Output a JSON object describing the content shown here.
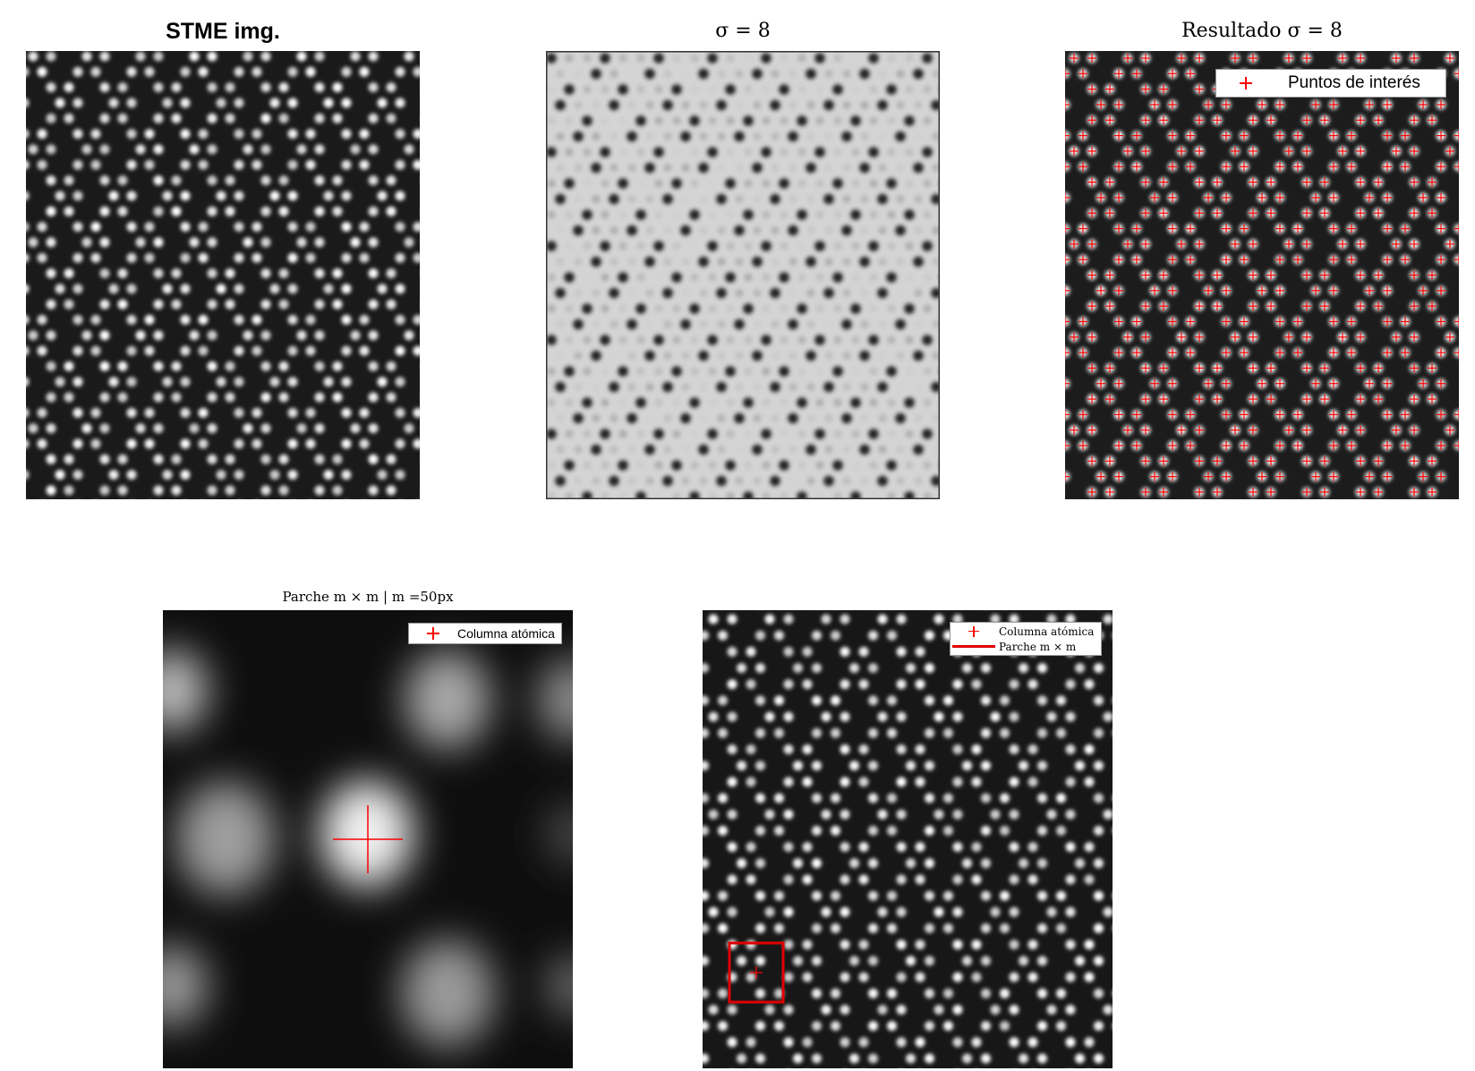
{
  "panels": {
    "stme": {
      "title": "STME img."
    },
    "sigma": {
      "title": "σ = 8"
    },
    "result": {
      "title": "Resultado σ = 8",
      "legend": {
        "marker_label": "Puntos de interés"
      }
    },
    "patch": {
      "title": "Parche m × m | m =50px",
      "legend": {
        "marker_label": "Columna atómica"
      }
    },
    "overview": {
      "legend": {
        "marker_label": "Columna atómica",
        "line_label": "Parche m × m"
      }
    }
  },
  "colors": {
    "marker": "#ff0000",
    "patch_box": "#e00000",
    "background": "#ffffff"
  },
  "icons": {
    "marker": "plus-marker-icon",
    "patch": "square-outline-icon"
  }
}
